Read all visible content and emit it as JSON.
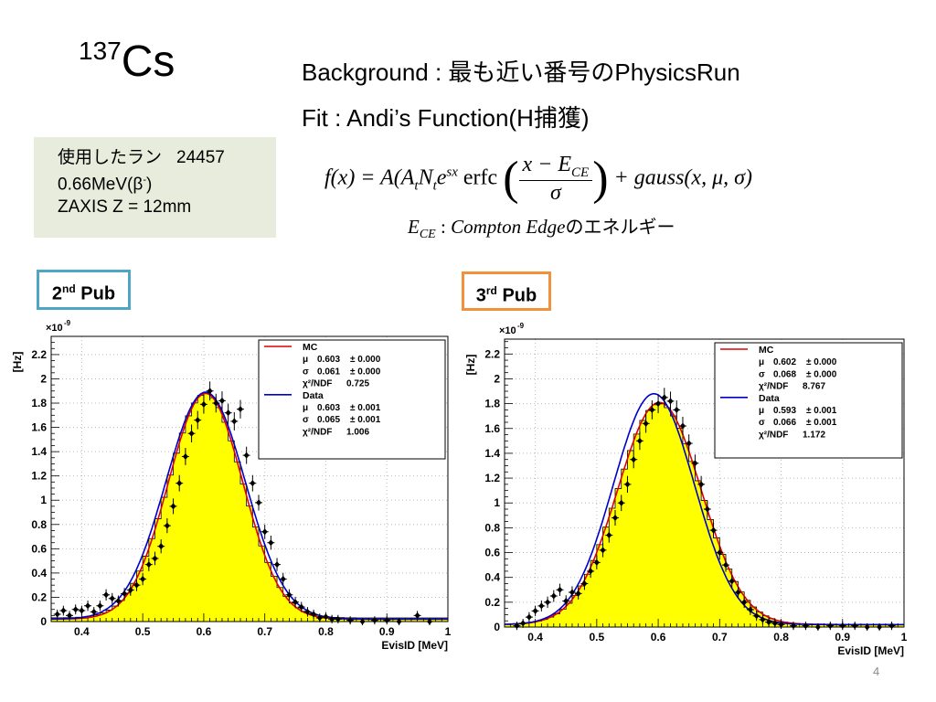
{
  "slide": {
    "title_mass": "137",
    "title_elem": "Cs",
    "background_line": "Background : 最も近い番号のPhysicsRun",
    "fit_line": "Fit : Andi’s Function(H捕獲)",
    "info": {
      "run_label": "使用したラン",
      "run_number": "24457",
      "energy": "0.66MeV(β",
      "energy_sup": "-",
      "energy_close": ")",
      "zaxis": "ZAXIS Z = 12mm"
    },
    "formula": {
      "lhs": "f(x) = A(A",
      "t1": "t",
      "n": "N",
      "t2": "t",
      "e": "e",
      "exp": "sx",
      "erfc": " erfc",
      "num": "x − E",
      "num_sub": "CE",
      "den": "σ",
      "rhs": "+ gauss(x, μ, σ)"
    },
    "ce_line": {
      "sym": "E",
      "sub": "CE",
      "colon": " : ",
      "desc": "Compton Edge",
      "jp": "のエネルギー"
    },
    "pub2": {
      "num": "2",
      "sup": "nd",
      "label": " Pub"
    },
    "pub3": {
      "num": "3",
      "sup": "rd",
      "label": " Pub"
    },
    "page_number": "4"
  },
  "colors": {
    "histogram_fill": "#ffff00",
    "mc": "#e00000",
    "data": "#0000cc",
    "info_bg": "#e7ecdc",
    "pub2_border": "#4fa6c4",
    "pub3_border": "#f0913e"
  },
  "chart_data": [
    {
      "type": "histogram",
      "ylabel": "[Hz]",
      "xlabel": "EvisID [MeV]",
      "exponent": "×10",
      "exponent_sup": "-9",
      "xlim": [
        0.35,
        1.0
      ],
      "ylim": [
        0,
        2.35
      ],
      "xticks": [
        {
          "v": 0.4,
          "t": "0.4"
        },
        {
          "v": 0.5,
          "t": "0.5"
        },
        {
          "v": 0.6,
          "t": "0.6"
        },
        {
          "v": 0.7,
          "t": "0.7"
        },
        {
          "v": 0.8,
          "t": "0.8"
        },
        {
          "v": 0.9,
          "t": "0.9"
        },
        {
          "v": 1.0,
          "t": "1"
        }
      ],
      "yticks": [
        {
          "v": 0,
          "t": "0"
        },
        {
          "v": 0.2,
          "t": "0.2"
        },
        {
          "v": 0.4,
          "t": "0.4"
        },
        {
          "v": 0.6,
          "t": "0.6"
        },
        {
          "v": 0.8,
          "t": "0.8"
        },
        {
          "v": 1.0,
          "t": "1"
        },
        {
          "v": 1.2,
          "t": "1.2"
        },
        {
          "v": 1.4,
          "t": "1.4"
        },
        {
          "v": 1.6,
          "t": "1.6"
        },
        {
          "v": 1.8,
          "t": "1.8"
        },
        {
          "v": 2.0,
          "t": "2"
        },
        {
          "v": 2.2,
          "t": "2.2"
        }
      ],
      "histogram": {
        "mu": 0.603,
        "sigma": 0.061,
        "amp": 1.85,
        "bg": 0.03,
        "bin_width": 0.01
      },
      "mc_fit": {
        "mu": 0.603,
        "sigma": 0.061,
        "amp": 1.86,
        "bg": 0.02
      },
      "data_fit": {
        "mu": 0.603,
        "sigma": 0.065,
        "amp": 1.87,
        "bg": 0.02
      },
      "data_points": [
        [
          0.36,
          0.06
        ],
        [
          0.37,
          0.09
        ],
        [
          0.38,
          0.05
        ],
        [
          0.39,
          0.1
        ],
        [
          0.4,
          0.09
        ],
        [
          0.41,
          0.13
        ],
        [
          0.42,
          0.08
        ],
        [
          0.43,
          0.13
        ],
        [
          0.44,
          0.22
        ],
        [
          0.45,
          0.19
        ],
        [
          0.46,
          0.17
        ],
        [
          0.47,
          0.23
        ],
        [
          0.48,
          0.26
        ],
        [
          0.49,
          0.3
        ],
        [
          0.5,
          0.35
        ],
        [
          0.51,
          0.47
        ],
        [
          0.52,
          0.52
        ],
        [
          0.53,
          0.62
        ],
        [
          0.54,
          0.79
        ],
        [
          0.55,
          0.95
        ],
        [
          0.56,
          1.14
        ],
        [
          0.57,
          1.36
        ],
        [
          0.58,
          1.55
        ],
        [
          0.59,
          1.66
        ],
        [
          0.6,
          1.79
        ],
        [
          0.61,
          1.9
        ],
        [
          0.62,
          1.8
        ],
        [
          0.63,
          1.82
        ],
        [
          0.64,
          1.72
        ],
        [
          0.65,
          1.65
        ],
        [
          0.66,
          1.75
        ],
        [
          0.67,
          1.37
        ],
        [
          0.68,
          1.14
        ],
        [
          0.69,
          0.98
        ],
        [
          0.7,
          0.74
        ],
        [
          0.71,
          0.65
        ],
        [
          0.72,
          0.47
        ],
        [
          0.73,
          0.35
        ],
        [
          0.74,
          0.22
        ],
        [
          0.75,
          0.16
        ],
        [
          0.76,
          0.12
        ],
        [
          0.77,
          0.08
        ],
        [
          0.78,
          0.06
        ],
        [
          0.79,
          0.03
        ],
        [
          0.8,
          0.04
        ],
        [
          0.81,
          0.02
        ],
        [
          0.82,
          0.02
        ],
        [
          0.84,
          0.01
        ],
        [
          0.86,
          0.0
        ],
        [
          0.88,
          0.01
        ],
        [
          0.9,
          0.01
        ],
        [
          0.92,
          0.0
        ],
        [
          0.95,
          0.05
        ],
        [
          0.97,
          0.0
        ]
      ],
      "legend": {
        "mc_title": "MC",
        "mc_rows": [
          [
            "μ",
            "0.603",
            "± 0.000"
          ],
          [
            "σ",
            "0.061",
            "± 0.000"
          ],
          [
            "χ²/NDF",
            "0.725",
            ""
          ]
        ],
        "data_title": "Data",
        "data_rows": [
          [
            "μ",
            "0.603",
            "± 0.001"
          ],
          [
            "σ",
            "0.065",
            "± 0.001"
          ],
          [
            "χ²/NDF",
            "1.006",
            ""
          ]
        ]
      }
    },
    {
      "type": "histogram",
      "ylabel": "[Hz]",
      "xlabel": "EvisID [MeV]",
      "exponent": "×10",
      "exponent_sup": "-9",
      "xlim": [
        0.35,
        1.0
      ],
      "ylim": [
        0,
        2.32
      ],
      "xticks": [
        {
          "v": 0.4,
          "t": "0.4"
        },
        {
          "v": 0.5,
          "t": "0.5"
        },
        {
          "v": 0.6,
          "t": "0.6"
        },
        {
          "v": 0.7,
          "t": "0.7"
        },
        {
          "v": 0.8,
          "t": "0.8"
        },
        {
          "v": 0.9,
          "t": "0.9"
        },
        {
          "v": 1.0,
          "t": "1"
        }
      ],
      "yticks": [
        {
          "v": 0,
          "t": "0"
        },
        {
          "v": 0.2,
          "t": "0.2"
        },
        {
          "v": 0.4,
          "t": "0.4"
        },
        {
          "v": 0.6,
          "t": "0.6"
        },
        {
          "v": 0.8,
          "t": "0.8"
        },
        {
          "v": 1.0,
          "t": "1"
        },
        {
          "v": 1.2,
          "t": "1.2"
        },
        {
          "v": 1.4,
          "t": "1.4"
        },
        {
          "v": 1.6,
          "t": "1.6"
        },
        {
          "v": 1.8,
          "t": "1.8"
        },
        {
          "v": 2.0,
          "t": "2"
        },
        {
          "v": 2.2,
          "t": "2.2"
        }
      ],
      "histogram": {
        "mu": 0.602,
        "sigma": 0.068,
        "amp": 1.78,
        "bg": 0.02,
        "bin_width": 0.01
      },
      "mc_fit": {
        "mu": 0.602,
        "sigma": 0.068,
        "amp": 1.79,
        "bg": 0.02
      },
      "data_fit": {
        "mu": 0.593,
        "sigma": 0.066,
        "amp": 1.86,
        "bg": 0.02
      },
      "data_points": [
        [
          0.37,
          0.01
        ],
        [
          0.38,
          0.03
        ],
        [
          0.39,
          0.08
        ],
        [
          0.4,
          0.13
        ],
        [
          0.41,
          0.17
        ],
        [
          0.42,
          0.2
        ],
        [
          0.43,
          0.25
        ],
        [
          0.44,
          0.3
        ],
        [
          0.45,
          0.21
        ],
        [
          0.46,
          0.28
        ],
        [
          0.47,
          0.27
        ],
        [
          0.48,
          0.35
        ],
        [
          0.49,
          0.45
        ],
        [
          0.5,
          0.52
        ],
        [
          0.51,
          0.62
        ],
        [
          0.52,
          0.74
        ],
        [
          0.53,
          0.88
        ],
        [
          0.54,
          1.0
        ],
        [
          0.55,
          1.15
        ],
        [
          0.56,
          1.35
        ],
        [
          0.57,
          1.5
        ],
        [
          0.58,
          1.64
        ],
        [
          0.59,
          1.75
        ],
        [
          0.6,
          1.8
        ],
        [
          0.61,
          1.85
        ],
        [
          0.62,
          1.82
        ],
        [
          0.63,
          1.75
        ],
        [
          0.64,
          1.62
        ],
        [
          0.65,
          1.48
        ],
        [
          0.66,
          1.32
        ],
        [
          0.67,
          1.15
        ],
        [
          0.68,
          0.95
        ],
        [
          0.69,
          0.78
        ],
        [
          0.7,
          0.6
        ],
        [
          0.71,
          0.5
        ],
        [
          0.72,
          0.37
        ],
        [
          0.73,
          0.28
        ],
        [
          0.74,
          0.2
        ],
        [
          0.75,
          0.14
        ],
        [
          0.76,
          0.09
        ],
        [
          0.77,
          0.06
        ],
        [
          0.78,
          0.04
        ],
        [
          0.79,
          0.03
        ],
        [
          0.8,
          0.02
        ],
        [
          0.82,
          0.01
        ],
        [
          0.84,
          0.01
        ],
        [
          0.86,
          0.0
        ],
        [
          0.88,
          0.01
        ],
        [
          0.9,
          0.01
        ],
        [
          0.92,
          0.01
        ],
        [
          0.94,
          0.0
        ],
        [
          0.96,
          0.0
        ],
        [
          0.98,
          0.01
        ]
      ],
      "legend": {
        "mc_title": "MC",
        "mc_rows": [
          [
            "μ",
            "0.602",
            "± 0.000"
          ],
          [
            "σ",
            "0.068",
            "± 0.000"
          ],
          [
            "χ²/NDF",
            "8.767",
            ""
          ]
        ],
        "data_title": "Data",
        "data_rows": [
          [
            "μ",
            "0.593",
            "± 0.001"
          ],
          [
            "σ",
            "0.066",
            "± 0.001"
          ],
          [
            "χ²/NDF",
            "1.172",
            ""
          ]
        ]
      }
    }
  ]
}
